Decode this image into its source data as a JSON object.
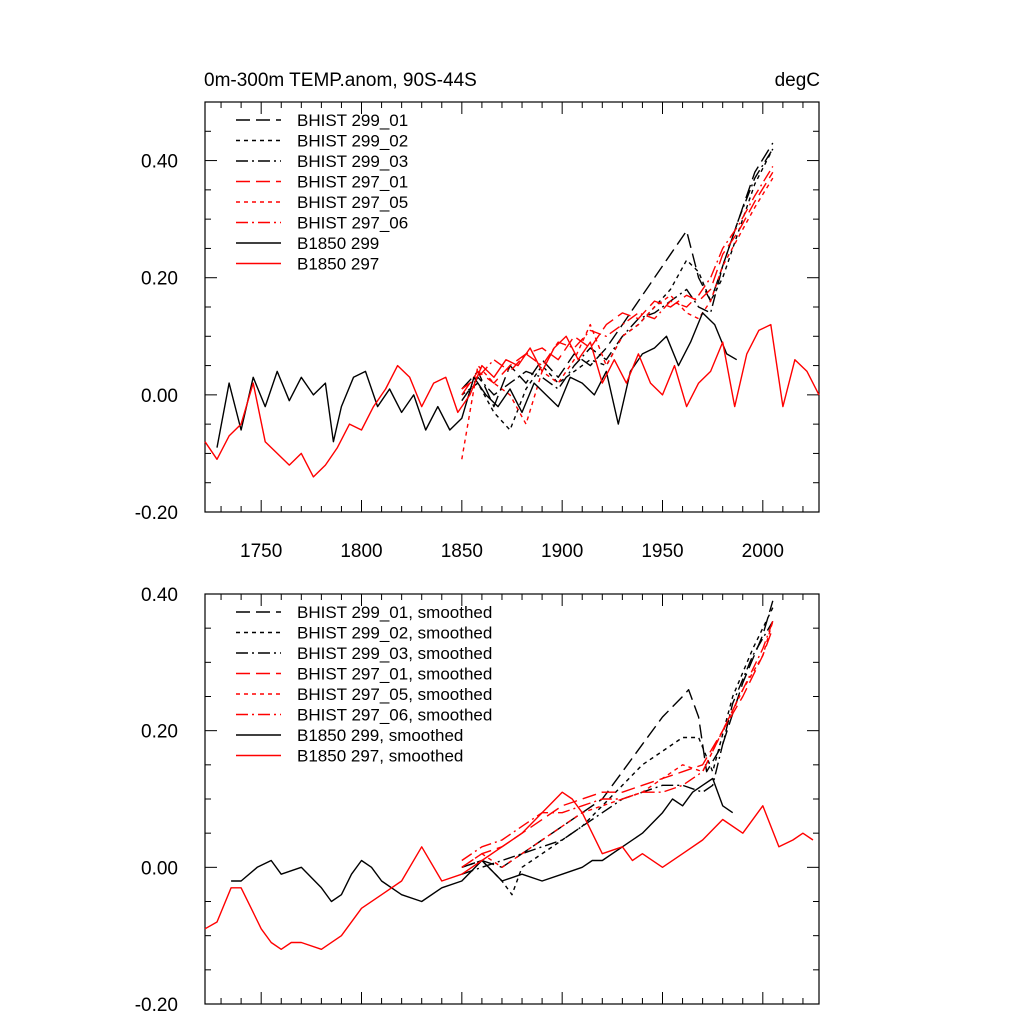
{
  "figure": {
    "background": "#ffffff"
  },
  "chart_data": [
    {
      "type": "line",
      "title": "0m-300m TEMP.anom, 90S-44S",
      "units": "degC",
      "xlabel": "",
      "ylabel": "",
      "xlim": [
        1722,
        2028
      ],
      "ylim": [
        -0.2,
        0.5
      ],
      "xticks": [
        "1750",
        "1800",
        "1850",
        "1900",
        "1950",
        "2000"
      ],
      "xtick_values": [
        1750,
        1800,
        1850,
        1900,
        1950,
        2000
      ],
      "yticks": [
        "-0.20",
        "0.00",
        "0.20",
        "0.40"
      ],
      "ytick_values": [
        -0.2,
        0.0,
        0.2,
        0.4
      ],
      "grid": false,
      "legend_position": "top-left",
      "series": [
        {
          "name": "BHIST 299_01",
          "color": "#000000",
          "dash": "long-dash",
          "x": [
            1850,
            1858,
            1866,
            1874,
            1882,
            1890,
            1898,
            1906,
            1914,
            1922,
            1930,
            1938,
            1946,
            1954,
            1962,
            1968,
            1974,
            1980,
            1988,
            1996,
            2005
          ],
          "y": [
            0.01,
            0.04,
            -0.02,
            0.05,
            0.02,
            0.06,
            0.03,
            0.07,
            0.05,
            0.08,
            0.12,
            0.16,
            0.2,
            0.24,
            0.28,
            0.2,
            0.16,
            0.22,
            0.3,
            0.38,
            0.43
          ]
        },
        {
          "name": "BHIST 299_02",
          "color": "#000000",
          "dash": "short-dash",
          "x": [
            1850,
            1858,
            1866,
            1874,
            1882,
            1890,
            1898,
            1906,
            1914,
            1922,
            1930,
            1938,
            1946,
            1954,
            1962,
            1968,
            1974,
            1980,
            1988,
            1996,
            2005
          ],
          "y": [
            0.0,
            0.02,
            -0.03,
            -0.06,
            0.01,
            0.05,
            0.02,
            0.04,
            0.06,
            0.05,
            0.1,
            0.12,
            0.15,
            0.18,
            0.23,
            0.21,
            0.16,
            0.2,
            0.28,
            0.36,
            0.42
          ]
        },
        {
          "name": "BHIST 299_03",
          "color": "#000000",
          "dash": "dash-dot",
          "x": [
            1850,
            1858,
            1866,
            1874,
            1882,
            1890,
            1898,
            1906,
            1914,
            1922,
            1930,
            1938,
            1946,
            1954,
            1962,
            1968,
            1974,
            1980,
            1988,
            1996,
            2005
          ],
          "y": [
            -0.01,
            0.03,
            0.0,
            0.02,
            0.04,
            0.03,
            0.01,
            0.05,
            0.08,
            0.06,
            0.1,
            0.13,
            0.14,
            0.16,
            0.18,
            0.15,
            0.14,
            0.22,
            0.3,
            0.37,
            0.42
          ]
        },
        {
          "name": "BHIST 297_01",
          "color": "#ff0000",
          "dash": "long-dash",
          "x": [
            1850,
            1858,
            1866,
            1874,
            1882,
            1890,
            1898,
            1906,
            1914,
            1922,
            1930,
            1938,
            1946,
            1954,
            1962,
            1968,
            1974,
            1980,
            1988,
            1996,
            2005
          ],
          "y": [
            0.0,
            0.04,
            0.02,
            0.05,
            0.07,
            0.08,
            0.06,
            0.1,
            0.08,
            0.12,
            0.14,
            0.13,
            0.16,
            0.15,
            0.17,
            0.16,
            0.18,
            0.24,
            0.28,
            0.33,
            0.38
          ]
        },
        {
          "name": "BHIST 297_05",
          "color": "#ff0000",
          "dash": "short-dash",
          "x": [
            1850,
            1858,
            1866,
            1874,
            1882,
            1890,
            1898,
            1906,
            1914,
            1922,
            1930,
            1938,
            1946,
            1954,
            1962,
            1968,
            1974,
            1980,
            1988,
            1996,
            2005
          ],
          "y": [
            -0.11,
            0.05,
            0.02,
            0.0,
            -0.05,
            0.04,
            0.02,
            0.06,
            0.12,
            0.05,
            0.1,
            0.12,
            0.15,
            0.17,
            0.14,
            0.13,
            0.16,
            0.22,
            0.27,
            0.32,
            0.37
          ]
        },
        {
          "name": "BHIST 297_06",
          "color": "#ff0000",
          "dash": "dash-dot",
          "x": [
            1850,
            1858,
            1866,
            1874,
            1882,
            1890,
            1898,
            1906,
            1914,
            1922,
            1930,
            1938,
            1946,
            1954,
            1962,
            1968,
            1974,
            1980,
            1988,
            1996,
            2005
          ],
          "y": [
            0.01,
            0.03,
            0.06,
            0.04,
            0.07,
            0.05,
            0.09,
            0.08,
            0.11,
            0.1,
            0.12,
            0.14,
            0.13,
            0.16,
            0.15,
            0.17,
            0.2,
            0.25,
            0.29,
            0.34,
            0.39
          ]
        },
        {
          "name": "B1850 299",
          "color": "#000000",
          "dash": "solid",
          "x": [
            1728,
            1734,
            1740,
            1746,
            1752,
            1758,
            1764,
            1770,
            1776,
            1782,
            1786,
            1790,
            1796,
            1802,
            1808,
            1814,
            1820,
            1826,
            1832,
            1838,
            1844,
            1850,
            1856,
            1862,
            1868,
            1874,
            1880,
            1886,
            1892,
            1898,
            1904,
            1910,
            1916,
            1922,
            1928,
            1934,
            1940,
            1946,
            1952,
            1958,
            1964,
            1970,
            1976,
            1982,
            1987
          ],
          "y": [
            -0.09,
            0.02,
            -0.06,
            0.03,
            -0.02,
            0.04,
            -0.01,
            0.03,
            0.0,
            0.02,
            -0.08,
            -0.02,
            0.03,
            0.04,
            -0.02,
            0.01,
            -0.03,
            0.0,
            -0.06,
            -0.02,
            -0.06,
            -0.04,
            0.03,
            0.0,
            -0.02,
            0.01,
            -0.03,
            0.02,
            0.0,
            -0.02,
            0.03,
            0.02,
            0.0,
            0.04,
            -0.05,
            0.04,
            0.07,
            0.08,
            0.1,
            0.05,
            0.09,
            0.14,
            0.12,
            0.07,
            0.06
          ]
        },
        {
          "name": "B1850 297",
          "color": "#ff0000",
          "dash": "solid",
          "x": [
            1722,
            1728,
            1734,
            1740,
            1746,
            1752,
            1758,
            1764,
            1770,
            1776,
            1782,
            1788,
            1794,
            1800,
            1806,
            1812,
            1818,
            1824,
            1830,
            1836,
            1842,
            1848,
            1854,
            1860,
            1866,
            1872,
            1878,
            1884,
            1890,
            1896,
            1902,
            1908,
            1914,
            1920,
            1926,
            1932,
            1938,
            1944,
            1950,
            1956,
            1962,
            1968,
            1974,
            1980,
            1986,
            1992,
            1998,
            2004,
            2010,
            2016,
            2022,
            2028
          ],
          "y": [
            -0.08,
            -0.11,
            -0.07,
            -0.05,
            0.02,
            -0.08,
            -0.1,
            -0.12,
            -0.1,
            -0.14,
            -0.12,
            -0.09,
            -0.05,
            -0.06,
            -0.02,
            0.01,
            0.05,
            0.03,
            -0.02,
            0.02,
            0.03,
            -0.03,
            0.0,
            0.05,
            0.03,
            0.06,
            0.05,
            0.08,
            0.04,
            0.08,
            0.1,
            0.06,
            0.09,
            0.02,
            0.06,
            0.02,
            0.07,
            0.02,
            0.0,
            0.05,
            -0.02,
            0.02,
            0.04,
            0.09,
            -0.02,
            0.07,
            0.11,
            0.12,
            -0.02,
            0.06,
            0.04,
            0.0
          ]
        }
      ]
    },
    {
      "type": "line",
      "title": "",
      "units": "",
      "xlabel": "",
      "ylabel": "",
      "xlim": [
        1722,
        2028
      ],
      "ylim": [
        -0.2,
        0.4
      ],
      "xticks": [],
      "xtick_values": [
        1750,
        1800,
        1850,
        1900,
        1950,
        2000
      ],
      "yticks": [
        "-0.20",
        "0.00",
        "0.20",
        "0.40"
      ],
      "ytick_values": [
        -0.2,
        0.0,
        0.2,
        0.4
      ],
      "grid": false,
      "legend_position": "top-left",
      "series": [
        {
          "name": "BHIST 299_01, smoothed",
          "color": "#000000",
          "dash": "long-dash",
          "x": [
            1850,
            1860,
            1870,
            1880,
            1890,
            1900,
            1910,
            1920,
            1930,
            1940,
            1950,
            1960,
            1963,
            1968,
            1972,
            1980,
            1990,
            2000,
            2005
          ],
          "y": [
            0.0,
            0.01,
            0.0,
            0.02,
            0.04,
            0.06,
            0.08,
            0.1,
            0.14,
            0.18,
            0.22,
            0.25,
            0.26,
            0.22,
            0.14,
            0.18,
            0.27,
            0.34,
            0.39
          ]
        },
        {
          "name": "BHIST 299_02, smoothed",
          "color": "#000000",
          "dash": "short-dash",
          "x": [
            1850,
            1860,
            1870,
            1875,
            1880,
            1890,
            1900,
            1910,
            1920,
            1930,
            1940,
            1950,
            1960,
            1968,
            1975,
            1985,
            1995,
            2005
          ],
          "y": [
            0.0,
            0.01,
            -0.02,
            -0.04,
            0.0,
            0.02,
            0.04,
            0.06,
            0.09,
            0.12,
            0.15,
            0.17,
            0.19,
            0.19,
            0.14,
            0.25,
            0.32,
            0.38
          ]
        },
        {
          "name": "BHIST 299_03, smoothed",
          "color": "#000000",
          "dash": "dash-dot",
          "x": [
            1850,
            1860,
            1870,
            1880,
            1890,
            1900,
            1910,
            1920,
            1930,
            1940,
            1950,
            1960,
            1970,
            1975,
            1985,
            1995,
            2005
          ],
          "y": [
            -0.01,
            0.0,
            0.01,
            0.02,
            0.03,
            0.04,
            0.06,
            0.08,
            0.1,
            0.11,
            0.12,
            0.12,
            0.11,
            0.12,
            0.24,
            0.31,
            0.36
          ]
        },
        {
          "name": "BHIST 297_01, smoothed",
          "color": "#ff0000",
          "dash": "long-dash",
          "x": [
            1850,
            1860,
            1870,
            1880,
            1890,
            1900,
            1910,
            1920,
            1930,
            1940,
            1950,
            1960,
            1970,
            1980,
            1990,
            2000,
            2005
          ],
          "y": [
            0.0,
            0.02,
            0.03,
            0.05,
            0.07,
            0.09,
            0.1,
            0.11,
            0.11,
            0.12,
            0.13,
            0.14,
            0.15,
            0.2,
            0.25,
            0.31,
            0.35
          ]
        },
        {
          "name": "BHIST 297_05, smoothed",
          "color": "#ff0000",
          "dash": "short-dash",
          "x": [
            1850,
            1860,
            1870,
            1880,
            1890,
            1900,
            1910,
            1920,
            1930,
            1940,
            1950,
            1960,
            1970,
            1980,
            1990,
            2000,
            2005
          ],
          "y": [
            0.0,
            0.02,
            0.0,
            0.02,
            0.04,
            0.06,
            0.08,
            0.09,
            0.1,
            0.11,
            0.13,
            0.15,
            0.14,
            0.2,
            0.26,
            0.31,
            0.36
          ]
        },
        {
          "name": "BHIST 297_06, smoothed",
          "color": "#ff0000",
          "dash": "dash-dot",
          "x": [
            1850,
            1860,
            1870,
            1880,
            1890,
            1900,
            1910,
            1920,
            1930,
            1940,
            1950,
            1960,
            1970,
            1980,
            1990,
            2000,
            2005
          ],
          "y": [
            0.01,
            0.03,
            0.04,
            0.06,
            0.08,
            0.08,
            0.09,
            0.1,
            0.1,
            0.11,
            0.11,
            0.12,
            0.14,
            0.2,
            0.26,
            0.32,
            0.36
          ]
        },
        {
          "name": "B1850 299, smoothed",
          "color": "#000000",
          "dash": "solid",
          "x": [
            1735,
            1740,
            1748,
            1755,
            1760,
            1770,
            1780,
            1785,
            1790,
            1795,
            1800,
            1805,
            1810,
            1820,
            1830,
            1840,
            1850,
            1860,
            1870,
            1880,
            1890,
            1900,
            1910,
            1915,
            1920,
            1930,
            1940,
            1950,
            1955,
            1960,
            1965,
            1970,
            1975,
            1980,
            1985
          ],
          "y": [
            -0.02,
            -0.02,
            0.0,
            0.01,
            -0.01,
            0.0,
            -0.03,
            -0.05,
            -0.04,
            -0.01,
            0.01,
            0.0,
            -0.02,
            -0.04,
            -0.05,
            -0.03,
            -0.02,
            0.01,
            -0.02,
            -0.01,
            -0.02,
            -0.01,
            0.0,
            0.01,
            0.01,
            0.03,
            0.05,
            0.08,
            0.1,
            0.09,
            0.11,
            0.12,
            0.13,
            0.09,
            0.08
          ]
        },
        {
          "name": "B1850 297, smoothed",
          "color": "#ff0000",
          "dash": "solid",
          "x": [
            1722,
            1728,
            1735,
            1740,
            1745,
            1750,
            1755,
            1760,
            1765,
            1770,
            1780,
            1790,
            1800,
            1810,
            1820,
            1830,
            1840,
            1850,
            1860,
            1870,
            1880,
            1890,
            1900,
            1905,
            1910,
            1920,
            1930,
            1935,
            1940,
            1950,
            1960,
            1970,
            1980,
            1990,
            2000,
            2008,
            2015,
            2020,
            2025
          ],
          "y": [
            -0.09,
            -0.08,
            -0.03,
            -0.03,
            -0.06,
            -0.09,
            -0.11,
            -0.12,
            -0.11,
            -0.11,
            -0.12,
            -0.1,
            -0.06,
            -0.04,
            -0.02,
            0.03,
            -0.02,
            -0.01,
            0.01,
            0.03,
            0.05,
            0.08,
            0.11,
            0.1,
            0.08,
            0.02,
            0.03,
            0.01,
            0.02,
            0.0,
            0.02,
            0.04,
            0.07,
            0.05,
            0.09,
            0.03,
            0.04,
            0.05,
            0.04
          ]
        }
      ]
    }
  ]
}
